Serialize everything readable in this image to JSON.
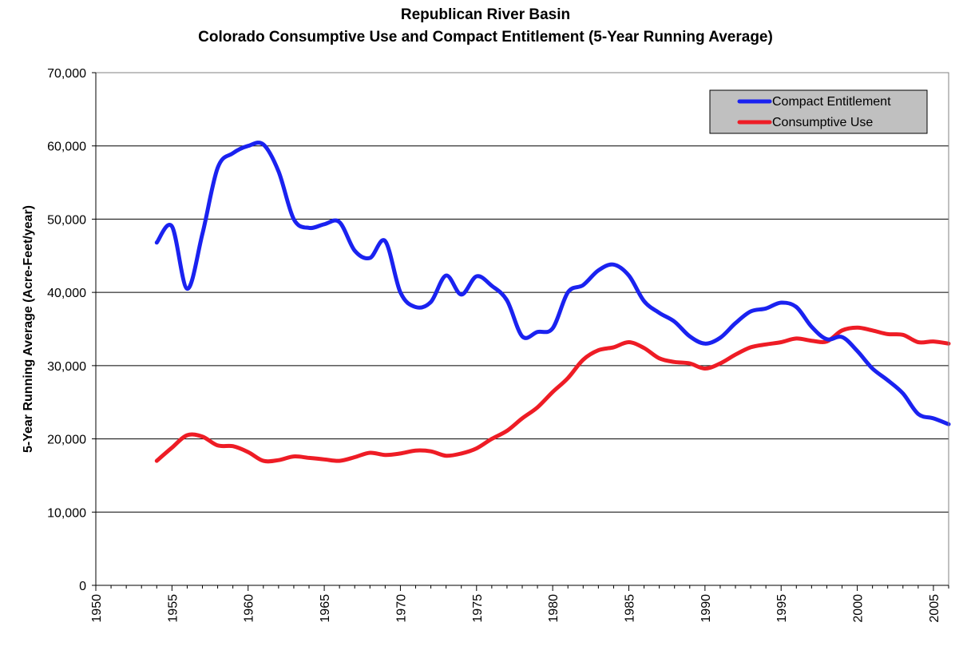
{
  "header": {
    "title": "Republican River Basin",
    "subtitle": "Colorado Consumptive Use and Compact Entitlement (5-Year Running Average)"
  },
  "chart_data": {
    "type": "line",
    "title": "Republican River Basin",
    "subtitle": "Colorado Consumptive Use and Compact Entitlement (5-Year Running Average)",
    "xlabel": "",
    "ylabel": "5-Year Running Average (Acre-Feet/year)",
    "xlim": [
      1950,
      2006
    ],
    "ylim": [
      0,
      70000
    ],
    "x_ticks": [
      1950,
      1955,
      1960,
      1965,
      1970,
      1975,
      1980,
      1985,
      1990,
      1995,
      2000,
      2005
    ],
    "y_ticks": [
      0,
      10000,
      20000,
      30000,
      40000,
      50000,
      60000,
      70000
    ],
    "y_tick_labels": [
      "0",
      "10,000",
      "20,000",
      "30,000",
      "40,000",
      "50,000",
      "60,000",
      "70,000"
    ],
    "grid": "horizontal",
    "legend_position": "top-right",
    "series": [
      {
        "name": "Compact Entitlement",
        "color": "#1a22f0",
        "points": [
          [
            1954,
            46800
          ],
          [
            1955,
            49000
          ],
          [
            1956,
            40500
          ],
          [
            1957,
            48000
          ],
          [
            1958,
            57000
          ],
          [
            1959,
            59000
          ],
          [
            1960,
            60000
          ],
          [
            1961,
            60200
          ],
          [
            1962,
            56500
          ],
          [
            1963,
            50000
          ],
          [
            1964,
            48800
          ],
          [
            1965,
            49300
          ],
          [
            1966,
            49600
          ],
          [
            1967,
            45700
          ],
          [
            1968,
            44700
          ],
          [
            1969,
            47000
          ],
          [
            1970,
            40000
          ],
          [
            1971,
            38000
          ],
          [
            1972,
            38700
          ],
          [
            1973,
            42300
          ],
          [
            1974,
            39700
          ],
          [
            1975,
            42200
          ],
          [
            1976,
            40900
          ],
          [
            1977,
            38900
          ],
          [
            1978,
            34000
          ],
          [
            1979,
            34600
          ],
          [
            1980,
            35100
          ],
          [
            1981,
            40000
          ],
          [
            1982,
            41000
          ],
          [
            1983,
            43000
          ],
          [
            1984,
            43800
          ],
          [
            1985,
            42300
          ],
          [
            1986,
            38800
          ],
          [
            1987,
            37200
          ],
          [
            1988,
            36000
          ],
          [
            1989,
            34000
          ],
          [
            1990,
            33000
          ],
          [
            1991,
            33800
          ],
          [
            1992,
            35800
          ],
          [
            1993,
            37400
          ],
          [
            1994,
            37800
          ],
          [
            1995,
            38600
          ],
          [
            1996,
            38000
          ],
          [
            1997,
            35300
          ],
          [
            1998,
            33600
          ],
          [
            1999,
            33900
          ],
          [
            2000,
            32000
          ],
          [
            2001,
            29600
          ],
          [
            2002,
            28000
          ],
          [
            2003,
            26200
          ],
          [
            2004,
            23400
          ],
          [
            2005,
            22800
          ],
          [
            2006,
            22000
          ]
        ]
      },
      {
        "name": "Consumptive Use",
        "color": "#ee1c25",
        "points": [
          [
            1954,
            17000
          ],
          [
            1955,
            18800
          ],
          [
            1956,
            20500
          ],
          [
            1957,
            20300
          ],
          [
            1958,
            19100
          ],
          [
            1959,
            19000
          ],
          [
            1960,
            18200
          ],
          [
            1961,
            17000
          ],
          [
            1962,
            17100
          ],
          [
            1963,
            17600
          ],
          [
            1964,
            17400
          ],
          [
            1965,
            17200
          ],
          [
            1966,
            17000
          ],
          [
            1967,
            17500
          ],
          [
            1968,
            18100
          ],
          [
            1969,
            17800
          ],
          [
            1970,
            18000
          ],
          [
            1971,
            18400
          ],
          [
            1972,
            18300
          ],
          [
            1973,
            17700
          ],
          [
            1974,
            18000
          ],
          [
            1975,
            18700
          ],
          [
            1976,
            20000
          ],
          [
            1977,
            21100
          ],
          [
            1978,
            22800
          ],
          [
            1979,
            24300
          ],
          [
            1980,
            26400
          ],
          [
            1981,
            28300
          ],
          [
            1982,
            30800
          ],
          [
            1983,
            32100
          ],
          [
            1984,
            32500
          ],
          [
            1985,
            33200
          ],
          [
            1986,
            32400
          ],
          [
            1987,
            31000
          ],
          [
            1988,
            30500
          ],
          [
            1989,
            30300
          ],
          [
            1990,
            29600
          ],
          [
            1991,
            30300
          ],
          [
            1992,
            31500
          ],
          [
            1993,
            32500
          ],
          [
            1994,
            32900
          ],
          [
            1995,
            33200
          ],
          [
            1996,
            33700
          ],
          [
            1997,
            33400
          ],
          [
            1998,
            33300
          ],
          [
            1999,
            34800
          ],
          [
            2000,
            35200
          ],
          [
            2001,
            34800
          ],
          [
            2002,
            34300
          ],
          [
            2003,
            34200
          ],
          [
            2004,
            33200
          ],
          [
            2005,
            33300
          ],
          [
            2006,
            33000
          ]
        ]
      }
    ]
  }
}
